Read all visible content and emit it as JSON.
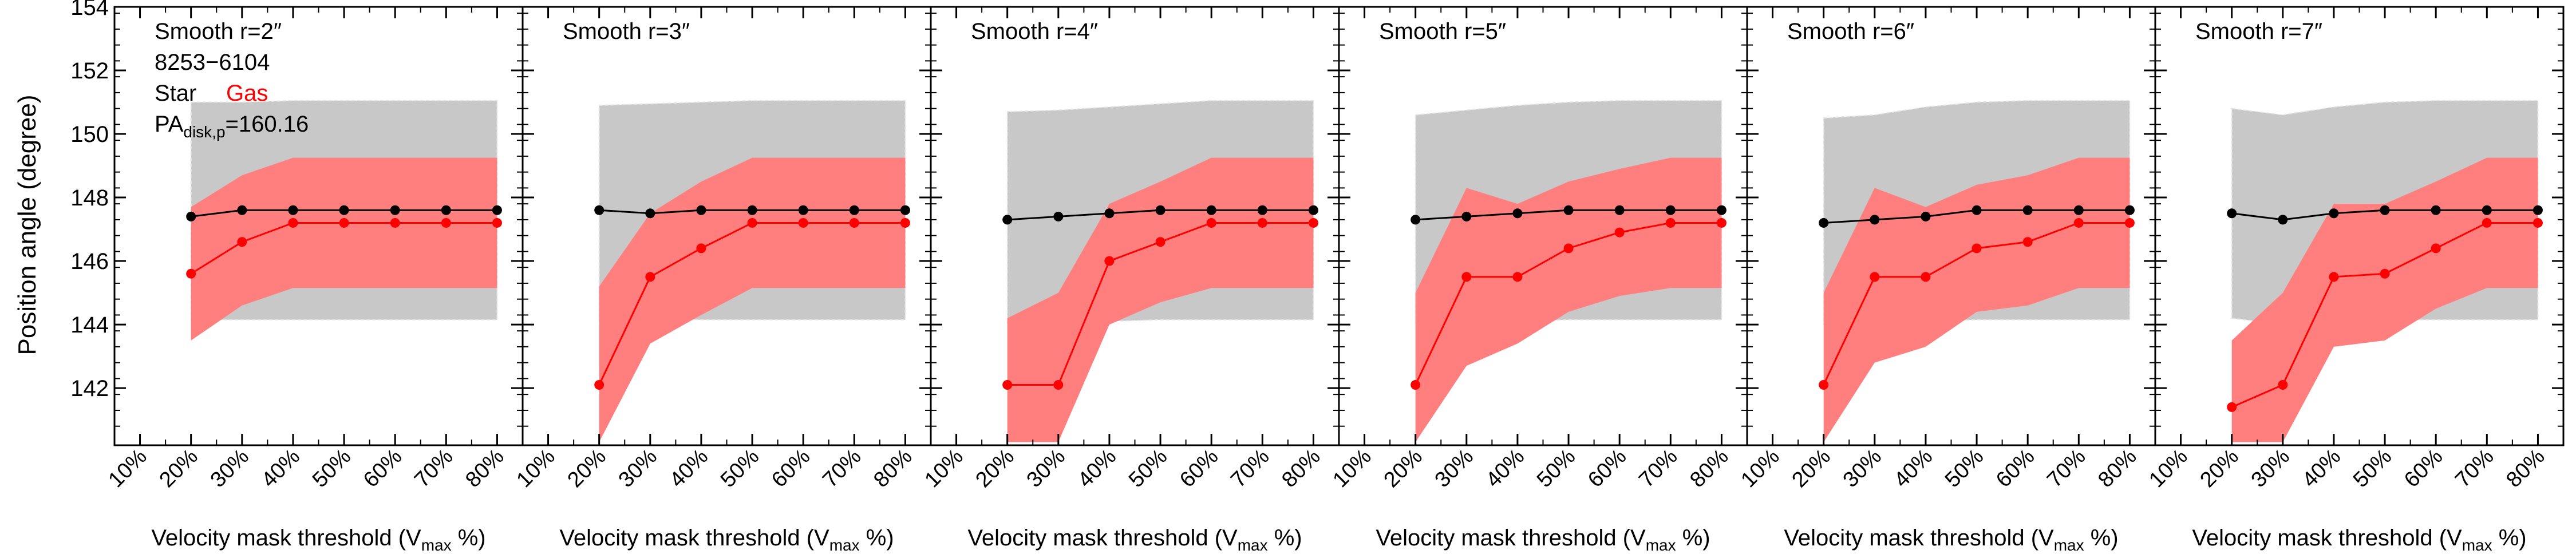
{
  "figure": {
    "ylabel": "Position angle (degree)",
    "galaxy_id": "8253−6104",
    "legend_star": "Star",
    "legend_gas": "Gas",
    "pa_prefix": "PA",
    "pa_subscript": "disk,p",
    "pa_value": "=160.16",
    "xlabel_main": "Velocity mask threshold (V",
    "xlabel_sub": "max",
    "xlabel_tail": " %)"
  },
  "colors": {
    "star": "#000000",
    "gas": "#ff0000",
    "gas_band": "#ff7f7f",
    "star_band": "#c8c8c8",
    "band_edge": "#e6e6e6"
  },
  "chart_data": {
    "type": "line",
    "ylim": [
      140.2,
      154
    ],
    "y_ticks": [
      142,
      144,
      146,
      148,
      150,
      152,
      154
    ],
    "x_ticks": [
      "10%",
      "20%",
      "30%",
      "40%",
      "50%",
      "60%",
      "70%",
      "80%"
    ],
    "x_domain": [
      0.05,
      0.85
    ],
    "panels": [
      {
        "title": "Smooth r=2″",
        "x": [
          0.2,
          0.3,
          0.4,
          0.5,
          0.6,
          0.7,
          0.8
        ],
        "series": [
          {
            "name": "Star",
            "values": [
              147.4,
              147.6,
              147.6,
              147.6,
              147.6,
              147.6,
              147.6
            ]
          },
          {
            "name": "Gas",
            "values": [
              145.6,
              146.6,
              147.2,
              147.2,
              147.2,
              147.2,
              147.2
            ]
          }
        ],
        "star_band": {
          "upper": [
            151.0,
            151.0,
            151.05,
            151.05,
            151.05,
            151.05,
            151.05
          ],
          "lower": [
            144.15,
            144.15,
            144.15,
            144.15,
            144.15,
            144.15,
            144.15
          ]
        },
        "gas_band": {
          "upper": [
            147.7,
            148.7,
            149.25,
            149.25,
            149.25,
            149.25,
            149.25
          ],
          "lower": [
            143.5,
            144.6,
            145.15,
            145.15,
            145.15,
            145.15,
            145.15
          ]
        }
      },
      {
        "title": "Smooth r=3″",
        "x": [
          0.2,
          0.3,
          0.4,
          0.5,
          0.6,
          0.7,
          0.8
        ],
        "series": [
          {
            "name": "Star",
            "values": [
              147.6,
              147.5,
              147.6,
              147.6,
              147.6,
              147.6,
              147.6
            ]
          },
          {
            "name": "Gas",
            "values": [
              142.1,
              145.5,
              146.4,
              147.2,
              147.2,
              147.2,
              147.2
            ]
          }
        ],
        "star_band": {
          "upper": [
            150.9,
            150.95,
            151.0,
            151.05,
            151.05,
            151.05,
            151.05
          ],
          "lower": [
            144.1,
            144.2,
            144.15,
            144.15,
            144.15,
            144.15,
            144.15
          ]
        },
        "gas_band": {
          "upper": [
            145.2,
            147.5,
            148.5,
            149.25,
            149.25,
            149.25,
            149.25
          ],
          "lower": [
            140.3,
            143.4,
            144.3,
            145.15,
            145.15,
            145.15,
            145.15
          ]
        }
      },
      {
        "title": "Smooth r=4″",
        "x": [
          0.2,
          0.3,
          0.4,
          0.5,
          0.6,
          0.7,
          0.8
        ],
        "series": [
          {
            "name": "Star",
            "values": [
              147.3,
              147.4,
              147.5,
              147.6,
              147.6,
              147.6,
              147.6
            ]
          },
          {
            "name": "Gas",
            "values": [
              142.1,
              142.1,
              146.0,
              146.6,
              147.2,
              147.2,
              147.2
            ]
          }
        ],
        "star_band": {
          "upper": [
            150.7,
            150.75,
            150.85,
            150.95,
            151.05,
            151.05,
            151.05
          ],
          "lower": [
            144.05,
            144.1,
            144.1,
            144.15,
            144.15,
            144.15,
            144.15
          ]
        },
        "gas_band": {
          "upper": [
            144.2,
            145.0,
            147.8,
            148.5,
            149.25,
            149.25,
            149.25
          ],
          "lower": [
            140.3,
            140.3,
            144.0,
            144.7,
            145.15,
            145.15,
            145.15
          ]
        }
      },
      {
        "title": "Smooth r=5″",
        "x": [
          0.2,
          0.3,
          0.4,
          0.5,
          0.6,
          0.7,
          0.8
        ],
        "series": [
          {
            "name": "Star",
            "values": [
              147.3,
              147.4,
              147.5,
              147.6,
              147.6,
              147.6,
              147.6
            ]
          },
          {
            "name": "Gas",
            "values": [
              142.1,
              145.5,
              145.5,
              146.4,
              146.9,
              147.2,
              147.2
            ]
          }
        ],
        "star_band": {
          "upper": [
            150.6,
            150.75,
            150.9,
            151.0,
            151.05,
            151.05,
            151.05
          ],
          "lower": [
            144.05,
            144.1,
            144.1,
            144.15,
            144.15,
            144.15,
            144.15
          ]
        },
        "gas_band": {
          "upper": [
            145.0,
            148.3,
            147.8,
            148.5,
            148.9,
            149.25,
            149.25
          ],
          "lower": [
            140.3,
            142.7,
            143.4,
            144.4,
            144.9,
            145.15,
            145.15
          ]
        }
      },
      {
        "title": "Smooth r=6″",
        "x": [
          0.2,
          0.3,
          0.4,
          0.5,
          0.6,
          0.7,
          0.8
        ],
        "series": [
          {
            "name": "Star",
            "values": [
              147.2,
              147.3,
              147.4,
              147.6,
              147.6,
              147.6,
              147.6
            ]
          },
          {
            "name": "Gas",
            "values": [
              142.1,
              145.5,
              145.5,
              146.4,
              146.6,
              147.2,
              147.2
            ]
          }
        ],
        "star_band": {
          "upper": [
            150.5,
            150.6,
            150.85,
            151.0,
            151.05,
            151.05,
            151.05
          ],
          "lower": [
            144.0,
            144.05,
            144.1,
            144.15,
            144.15,
            144.15,
            144.15
          ]
        },
        "gas_band": {
          "upper": [
            145.0,
            148.3,
            147.7,
            148.4,
            148.7,
            149.25,
            149.25
          ],
          "lower": [
            140.3,
            142.8,
            143.3,
            144.4,
            144.6,
            145.15,
            145.15
          ]
        }
      },
      {
        "title": "Smooth r=7″",
        "x": [
          0.2,
          0.3,
          0.4,
          0.5,
          0.6,
          0.7,
          0.8
        ],
        "series": [
          {
            "name": "Star",
            "values": [
              147.5,
              147.3,
              147.5,
              147.6,
              147.6,
              147.6,
              147.6
            ]
          },
          {
            "name": "Gas",
            "values": [
              141.4,
              142.1,
              145.5,
              145.6,
              146.4,
              147.2,
              147.2
            ]
          }
        ],
        "star_band": {
          "upper": [
            150.8,
            150.6,
            150.85,
            151.0,
            151.05,
            151.05,
            151.05
          ],
          "lower": [
            144.2,
            144.0,
            144.1,
            144.15,
            144.15,
            144.15,
            144.15
          ]
        },
        "gas_band": {
          "upper": [
            143.5,
            145.0,
            147.8,
            147.8,
            148.5,
            149.25,
            149.25
          ],
          "lower": [
            140.3,
            140.3,
            143.3,
            143.5,
            144.5,
            145.15,
            145.15
          ]
        }
      }
    ]
  }
}
